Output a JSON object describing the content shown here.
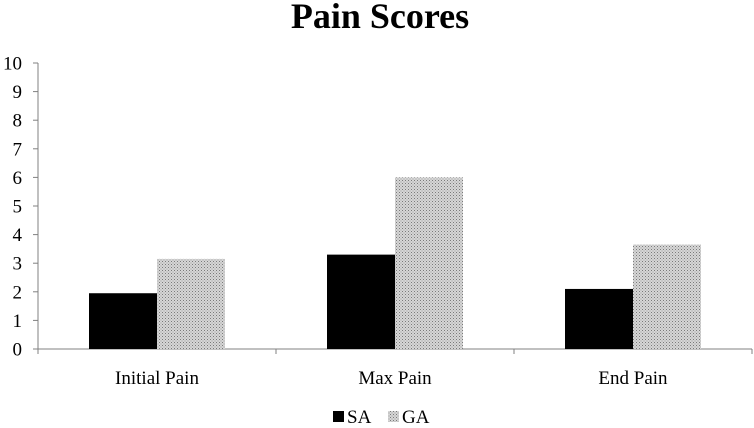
{
  "chart_data": {
    "type": "bar",
    "title": "Pain Scores",
    "xlabel": "",
    "ylabel": "",
    "categories": [
      "Initial Pain",
      "Max Pain",
      "End Pain"
    ],
    "series": [
      {
        "name": "SA",
        "values": [
          1.95,
          3.3,
          2.1
        ],
        "color": "#000000",
        "fill": "solid"
      },
      {
        "name": "GA",
        "values": [
          3.15,
          6.0,
          3.65
        ],
        "color": "#b0b0b0",
        "fill": "dotted"
      }
    ],
    "ylim": [
      0,
      10
    ],
    "yticks": [
      "0",
      "1",
      "2",
      "3",
      "4",
      "5",
      "6",
      "7",
      "8",
      "9",
      "10"
    ],
    "grid": false,
    "legend_position": "bottom"
  }
}
